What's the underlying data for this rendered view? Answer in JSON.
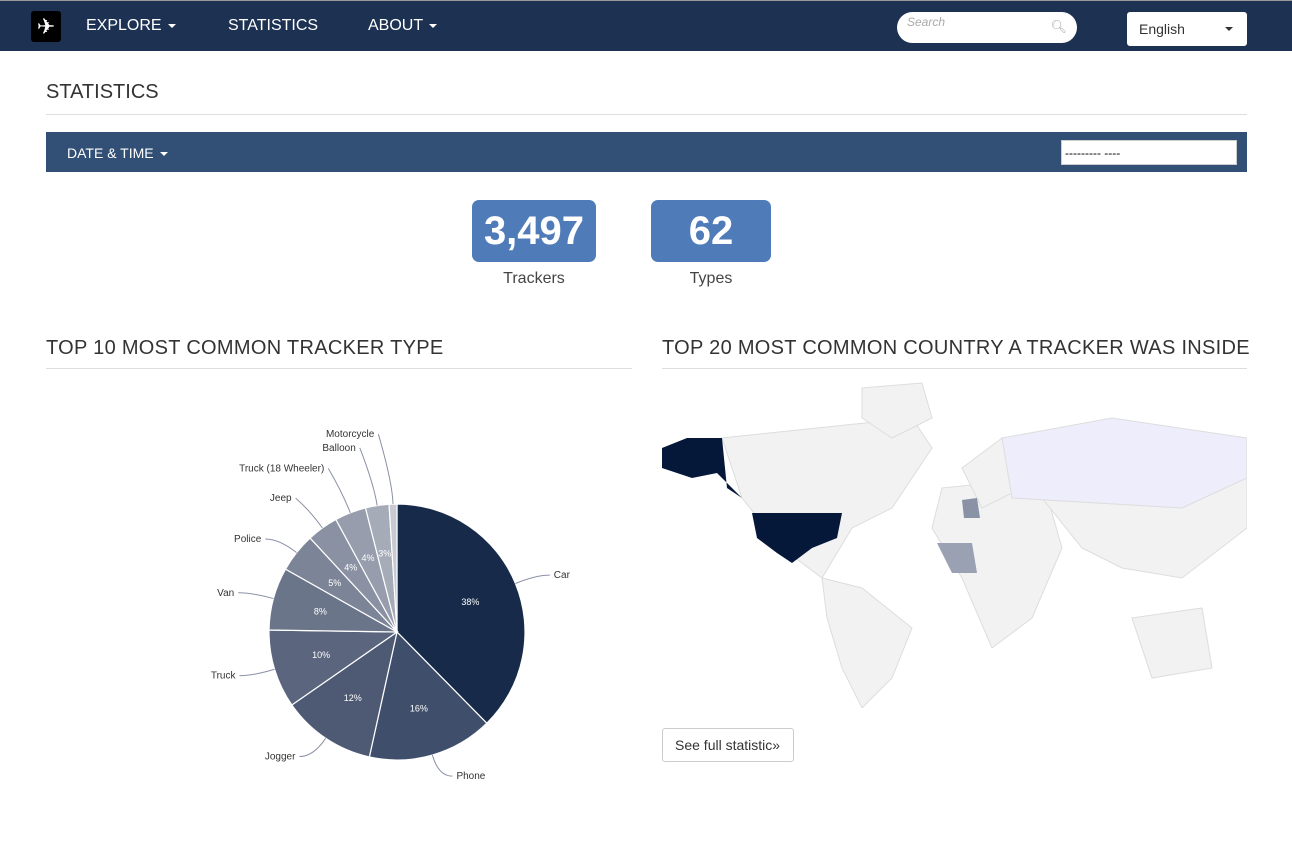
{
  "nav": {
    "logo_icon": "airplane-icon",
    "items": [
      {
        "label": "EXPLORE",
        "dropdown": true
      },
      {
        "label": "STATISTICS",
        "dropdown": false
      },
      {
        "label": "ABOUT",
        "dropdown": true
      }
    ],
    "search_placeholder": "Search",
    "language": "English"
  },
  "page": {
    "title": "STATISTICS",
    "filter_label": "DATE & TIME",
    "date_value": "--------- ----"
  },
  "stats": [
    {
      "value": "3,497",
      "label": "Trackers"
    },
    {
      "value": "62",
      "label": "Types"
    }
  ],
  "sections": {
    "pie_title": "TOP 10 MOST COMMON TRACKER TYPE",
    "map_title": "TOP 20 MOST COMMON COUNTRY A TRACKER WAS INSIDE",
    "full_button": "See full statistic»"
  },
  "colors": {
    "nav": "#1d3152",
    "bar": "#324f75",
    "stat_box": "#4f7bb8"
  },
  "chart_data": {
    "type": "pie",
    "categories": [
      "Car",
      "Phone",
      "Jogger",
      "Truck",
      "Van",
      "Police",
      "Jeep",
      "Truck (18 Wheeler)",
      "Balloon",
      "Motorcycle"
    ],
    "values": [
      38,
      16,
      12,
      10,
      8,
      5,
      4,
      4,
      3,
      1
    ],
    "data_labels": [
      "38%",
      "16%",
      "12%",
      "10%",
      "8%",
      "5%",
      "4%",
      "4%",
      "3%",
      ""
    ]
  }
}
